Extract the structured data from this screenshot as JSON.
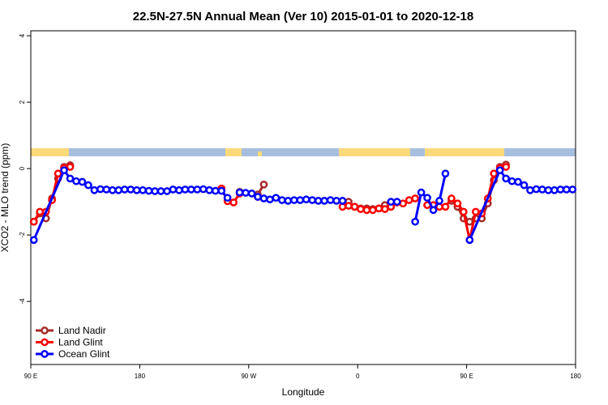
{
  "chart_data": {
    "type": "line",
    "title": "22.5N-27.5N Annual Mean (Ver 10)   2015-01-01 to 2020-12-18",
    "xlabel": "Longitude",
    "ylabel": "XCO2 - MLO trend (ppm)",
    "xlim": [
      90,
      540
    ],
    "ylim": [
      -5.9,
      4.15
    ],
    "xticks": [
      {
        "value": 90,
        "label": "90 E"
      },
      180,
      {
        "value": 270,
        "label": "90 W"
      },
      {
        "value": 360,
        "label": "0"
      },
      {
        "value": 450,
        "label": "90 E"
      },
      {
        "value": 540,
        "label": "180"
      }
    ],
    "yticks": [
      4,
      2,
      0,
      -2,
      -4
    ],
    "legend": "bottom-left",
    "series": [
      {
        "name": "Land Nadir",
        "color": "#a52a2a",
        "x": [
          92.5,
          97.5,
          102.5,
          107.5,
          112.5,
          117.5,
          122.5,
          127.5,
          262.5,
          267.5,
          277.5,
          282.5,
          287.5,
          352.5,
          357.5,
          362.5,
          367.5,
          372.5,
          377.5,
          382.5,
          387.5,
          392.5,
          437.5,
          442.5,
          447.5,
          452.5,
          457.5,
          462.5,
          467.5,
          472.5,
          477.5,
          482.5
        ],
        "values": [
          -1.6,
          -1.35,
          -1.5,
          -0.9,
          -0.3,
          0.05,
          0.1,
          null,
          -0.7,
          null,
          -0.78,
          -0.48,
          null,
          -1.0,
          -1.15,
          -1.2,
          -1.2,
          -1.22,
          -1.2,
          -1.1,
          -1.02,
          null,
          -0.97,
          -1.15,
          -1.5,
          -1.6,
          -1.5,
          -1.5,
          -1.05,
          -0.35,
          0.05,
          0.12
        ]
      },
      {
        "name": "Land Glint",
        "color": "#ff0000",
        "x": [
          92.5,
          97.5,
          102.5,
          107.5,
          112.5,
          117.5,
          122.5,
          127.5,
          247.5,
          252.5,
          257.5,
          262.5,
          267.5,
          277.5,
          282.5,
          347.5,
          352.5,
          357.5,
          362.5,
          367.5,
          372.5,
          377.5,
          382.5,
          387.5,
          392.5,
          397.5,
          402.5,
          407.5,
          412.5,
          417.5,
          422.5,
          427.5,
          432.5,
          437.5,
          442.5,
          447.5,
          452.5,
          457.5,
          462.5,
          467.5,
          472.5,
          477.5,
          482.5
        ],
        "values": [
          -1.6,
          -1.3,
          -1.3,
          -0.95,
          -0.15,
          0.02,
          0.05,
          null,
          -0.6,
          -0.98,
          -1.02,
          -0.75,
          null,
          -0.85,
          null,
          -1.15,
          -1.12,
          -1.15,
          -1.22,
          -1.25,
          -1.25,
          -1.2,
          -1.22,
          -1.15,
          -1.02,
          -1.05,
          -0.95,
          -0.9,
          null,
          -1.1,
          -1.1,
          -1.15,
          -1.15,
          -0.9,
          -1.05,
          -1.3,
          -2.15,
          -1.3,
          -1.35,
          -0.9,
          -0.15,
          0.02,
          0.05
        ]
      },
      {
        "name": "Ocean Glint",
        "color": "#0000ff",
        "x": [
          92.5,
          117.5,
          122.5,
          127.5,
          132.5,
          137.5,
          142.5,
          147.5,
          152.5,
          157.5,
          162.5,
          167.5,
          172.5,
          177.5,
          182.5,
          187.5,
          192.5,
          197.5,
          202.5,
          207.5,
          212.5,
          217.5,
          222.5,
          227.5,
          232.5,
          237.5,
          242.5,
          247.5,
          252.5,
          257.5,
          262.5,
          267.5,
          272.5,
          277.5,
          282.5,
          287.5,
          292.5,
          297.5,
          302.5,
          307.5,
          312.5,
          317.5,
          322.5,
          327.5,
          332.5,
          337.5,
          342.5,
          347.5,
          352.5,
          387.5,
          392.5,
          397.5,
          407.5,
          412.5,
          417.5,
          422.5,
          427.5,
          432.5,
          437.5,
          452.5,
          477.5,
          482.5,
          487.5,
          492.5,
          497.5,
          502.5,
          507.5,
          512.5,
          517.5,
          522.5,
          527.5,
          532.5,
          537.5
        ],
        "values": [
          -2.15,
          -0.05,
          -0.3,
          -0.38,
          -0.4,
          -0.5,
          -0.65,
          -0.62,
          -0.63,
          -0.65,
          -0.65,
          -0.63,
          -0.63,
          -0.65,
          -0.65,
          -0.67,
          -0.68,
          -0.68,
          -0.68,
          -0.63,
          -0.65,
          -0.63,
          -0.63,
          -0.63,
          -0.62,
          -0.65,
          -0.67,
          -0.67,
          -0.88,
          null,
          -0.72,
          -0.73,
          -0.75,
          -0.85,
          -0.9,
          -0.93,
          -0.88,
          -0.95,
          -0.97,
          -0.95,
          -0.95,
          -0.93,
          -0.95,
          -0.97,
          -0.97,
          -0.95,
          -0.97,
          -0.97,
          null,
          -1.0,
          -1.0,
          null,
          -1.6,
          -0.72,
          -0.88,
          -1.25,
          -0.97,
          -0.15,
          null,
          -2.15,
          -0.05,
          -0.3,
          -0.38,
          -0.4,
          -0.5,
          -0.65,
          -0.62,
          -0.63,
          -0.65,
          -0.65,
          -0.63,
          -0.63,
          -0.63
        ]
      }
    ]
  }
}
